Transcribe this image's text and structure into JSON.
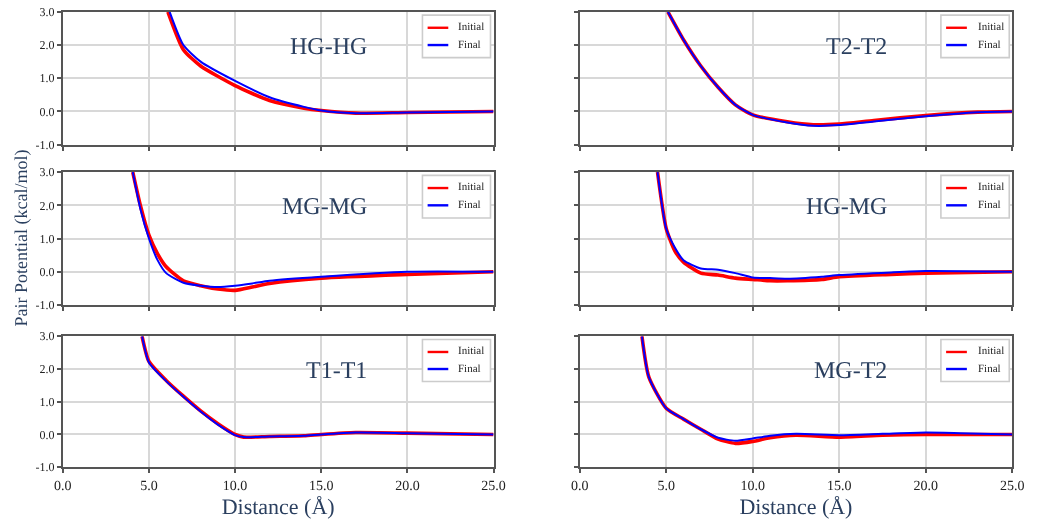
{
  "chart_data": [
    {
      "type": "line",
      "title": "HG-HG",
      "xlim": [
        0,
        25
      ],
      "ylim": [
        -1,
        3
      ],
      "xticks": [
        {
          "value": 0,
          "label": null
        },
        {
          "value": 5,
          "label": null
        },
        {
          "value": 10,
          "label": null
        },
        {
          "value": 15,
          "label": null
        },
        {
          "value": 20,
          "label": null
        },
        {
          "value": 25,
          "label": null
        }
      ],
      "yticks": [
        {
          "value": -1,
          "label": "-1.0"
        },
        {
          "value": 0,
          "label": "0.0"
        },
        {
          "value": 1,
          "label": "1.0"
        },
        {
          "value": 2,
          "label": "2.0"
        },
        {
          "value": 3,
          "label": "3.0"
        }
      ],
      "tick_labels": "y",
      "grid": true,
      "legend": "top right",
      "series": [
        {
          "name": "Initial",
          "color": "#ff0000",
          "x": [
            6.1,
            7,
            8,
            10,
            12,
            14,
            15,
            17,
            20,
            25
          ],
          "values": [
            3.0,
            1.86,
            1.37,
            0.78,
            0.33,
            0.1,
            0.03,
            -0.05,
            -0.03,
            0.0
          ]
        },
        {
          "name": "Final",
          "color": "#0000ff",
          "x": [
            6.2,
            7,
            8,
            10,
            12,
            14,
            15,
            17,
            20,
            25
          ],
          "values": [
            3.0,
            2.0,
            1.5,
            0.92,
            0.43,
            0.14,
            0.03,
            -0.05,
            -0.03,
            0.0
          ]
        }
      ]
    },
    {
      "type": "line",
      "title": "T2-T2",
      "xlim": [
        0,
        25
      ],
      "ylim": [
        -1,
        3
      ],
      "xticks": [
        {
          "value": 0,
          "label": null
        },
        {
          "value": 5,
          "label": null
        },
        {
          "value": 10,
          "label": null
        },
        {
          "value": 15,
          "label": null
        },
        {
          "value": 20,
          "label": null
        },
        {
          "value": 25,
          "label": null
        }
      ],
      "yticks": [
        {
          "value": -1,
          "label": null
        },
        {
          "value": 0,
          "label": null
        },
        {
          "value": 1,
          "label": null
        },
        {
          "value": 2,
          "label": null
        },
        {
          "value": 3,
          "label": null
        }
      ],
      "tick_labels": false,
      "grid": true,
      "legend": "top right",
      "series": [
        {
          "name": "Initial",
          "color": "#ff0000",
          "x": [
            5.1,
            6,
            7,
            8,
            9,
            10,
            12,
            13.5,
            15,
            17,
            20,
            23,
            25
          ],
          "values": [
            3.0,
            2.16,
            1.37,
            0.73,
            0.2,
            -0.1,
            -0.31,
            -0.4,
            -0.38,
            -0.27,
            -0.12,
            -0.02,
            0.0
          ]
        },
        {
          "name": "Final",
          "color": "#0000ff",
          "x": [
            5.1,
            6,
            7,
            8,
            9,
            10,
            12,
            13.5,
            15,
            17,
            20,
            23,
            25
          ],
          "values": [
            3.0,
            2.16,
            1.37,
            0.73,
            0.2,
            -0.1,
            -0.33,
            -0.43,
            -0.41,
            -0.3,
            -0.14,
            -0.02,
            0.0
          ]
        }
      ]
    },
    {
      "type": "line",
      "title": "MG-MG",
      "ylabel": "Pair Potential (kcal/mol)",
      "xlim": [
        0,
        25
      ],
      "ylim": [
        -1,
        3
      ],
      "xticks": [
        {
          "value": 0,
          "label": null
        },
        {
          "value": 5,
          "label": null
        },
        {
          "value": 10,
          "label": null
        },
        {
          "value": 15,
          "label": null
        },
        {
          "value": 20,
          "label": null
        },
        {
          "value": 25,
          "label": null
        }
      ],
      "yticks": [
        {
          "value": -1,
          "label": "-1.0"
        },
        {
          "value": 0,
          "label": "0.0"
        },
        {
          "value": 1,
          "label": "1.0"
        },
        {
          "value": 2,
          "label": "2.0"
        },
        {
          "value": 3,
          "label": "3.0"
        }
      ],
      "tick_labels": "y",
      "grid": true,
      "legend": "top right",
      "series": [
        {
          "name": "Initial",
          "color": "#ff0000",
          "x": [
            4.06,
            4.5,
            5,
            5.5,
            6,
            7,
            8,
            9,
            10,
            11,
            12,
            15,
            20,
            25
          ],
          "values": [
            3.0,
            2.0,
            1.1,
            0.54,
            0.15,
            -0.27,
            -0.42,
            -0.52,
            -0.56,
            -0.46,
            -0.35,
            -0.19,
            -0.08,
            0.0
          ]
        },
        {
          "name": "Final",
          "color": "#0000ff",
          "x": [
            4.06,
            4.5,
            5,
            5.5,
            6,
            7,
            8,
            9,
            10,
            11,
            12,
            15,
            20,
            25
          ],
          "values": [
            3.0,
            1.9,
            1.0,
            0.35,
            -0.04,
            -0.33,
            -0.42,
            -0.46,
            -0.42,
            -0.35,
            -0.27,
            -0.15,
            0.0,
            0.0
          ]
        }
      ]
    },
    {
      "type": "line",
      "title": "HG-MG",
      "xlim": [
        0,
        25
      ],
      "ylim": [
        -1,
        3
      ],
      "xticks": [
        {
          "value": 0,
          "label": null
        },
        {
          "value": 5,
          "label": null
        },
        {
          "value": 10,
          "label": null
        },
        {
          "value": 15,
          "label": null
        },
        {
          "value": 20,
          "label": null
        },
        {
          "value": 25,
          "label": null
        }
      ],
      "yticks": [
        {
          "value": -1,
          "label": null
        },
        {
          "value": 0,
          "label": null
        },
        {
          "value": 1,
          "label": null
        },
        {
          "value": 2,
          "label": null
        },
        {
          "value": 3,
          "label": null
        }
      ],
      "tick_labels": false,
      "grid": true,
      "legend": "top right",
      "series": [
        {
          "name": "Initial",
          "color": "#ff0000",
          "x": [
            4.5,
            5,
            5.5,
            6,
            7,
            8,
            9,
            10,
            11,
            12,
            14,
            15,
            18,
            20,
            25
          ],
          "values": [
            3.0,
            1.3,
            0.63,
            0.29,
            -0.04,
            -0.1,
            -0.19,
            -0.23,
            -0.27,
            -0.27,
            -0.23,
            -0.15,
            -0.08,
            -0.04,
            0.0
          ]
        },
        {
          "name": "Final",
          "color": "#0000ff",
          "x": [
            4.5,
            5,
            5.5,
            6,
            7,
            8,
            9,
            10,
            11,
            12,
            14,
            15,
            18,
            20,
            25
          ],
          "values": [
            3.0,
            1.3,
            0.73,
            0.35,
            0.1,
            0.06,
            -0.04,
            -0.17,
            -0.19,
            -0.21,
            -0.15,
            -0.1,
            -0.02,
            0.02,
            0.0
          ]
        }
      ]
    },
    {
      "type": "line",
      "title": "T1-T1",
      "xlabel": "Distance (Å)",
      "xlim": [
        0,
        25
      ],
      "ylim": [
        -1,
        3
      ],
      "xticks": [
        {
          "value": 0,
          "label": "0.0"
        },
        {
          "value": 5,
          "label": "5.0"
        },
        {
          "value": 10,
          "label": "10.0"
        },
        {
          "value": 15,
          "label": "15.0"
        },
        {
          "value": 20,
          "label": "20.0"
        },
        {
          "value": 25,
          "label": "25.0"
        }
      ],
      "yticks": [
        {
          "value": -1,
          "label": "-1.0"
        },
        {
          "value": 0,
          "label": "0.0"
        },
        {
          "value": 1,
          "label": "1.0"
        },
        {
          "value": 2,
          "label": "2.0"
        },
        {
          "value": 3,
          "label": "3.0"
        }
      ],
      "grid": true,
      "legend": "top right",
      "series": [
        {
          "name": "Initial",
          "color": "#ff0000",
          "x": [
            4.6,
            5,
            6,
            7,
            8,
            9,
            10,
            10.5,
            12,
            14,
            15,
            17,
            20,
            25
          ],
          "values": [
            3.0,
            2.23,
            1.65,
            1.17,
            0.72,
            0.33,
            0.0,
            -0.08,
            -0.06,
            -0.04,
            0.0,
            0.06,
            0.04,
            0.0
          ]
        },
        {
          "name": "Final",
          "color": "#0000ff",
          "x": [
            4.6,
            5,
            6,
            7,
            8,
            9,
            10,
            10.5,
            12,
            14,
            15,
            17,
            20,
            25
          ],
          "values": [
            3.0,
            2.2,
            1.63,
            1.15,
            0.7,
            0.3,
            -0.02,
            -0.08,
            -0.06,
            -0.04,
            0.0,
            0.06,
            0.04,
            0.0
          ]
        }
      ]
    },
    {
      "type": "line",
      "title": "MG-T2",
      "xlabel": "Distance (Å)",
      "xlim": [
        0,
        25
      ],
      "ylim": [
        -1,
        3
      ],
      "xticks": [
        {
          "value": 0,
          "label": "0.0"
        },
        {
          "value": 5,
          "label": "5.0"
        },
        {
          "value": 10,
          "label": "10.0"
        },
        {
          "value": 15,
          "label": "15.0"
        },
        {
          "value": 20,
          "label": "20.0"
        },
        {
          "value": 25,
          "label": "25.0"
        }
      ],
      "yticks": [
        {
          "value": -1,
          "label": null
        },
        {
          "value": 0,
          "label": null
        },
        {
          "value": 1,
          "label": null
        },
        {
          "value": 2,
          "label": null
        },
        {
          "value": 3,
          "label": null
        }
      ],
      "tick_labels": "x",
      "grid": true,
      "legend": "top right",
      "series": [
        {
          "name": "Initial",
          "color": "#ff0000",
          "x": [
            3.6,
            4,
            5,
            6,
            7,
            8,
            9,
            10,
            11,
            12.5,
            15,
            17.5,
            20,
            22,
            25
          ],
          "values": [
            3.0,
            1.75,
            0.8,
            0.47,
            0.16,
            -0.14,
            -0.27,
            -0.21,
            -0.1,
            -0.02,
            -0.08,
            -0.02,
            0.0,
            0.0,
            0.0
          ]
        },
        {
          "name": "Final",
          "color": "#0000ff",
          "x": [
            3.6,
            4,
            5,
            6,
            7,
            8,
            9,
            10,
            11,
            12.5,
            15,
            17.5,
            20,
            22,
            25
          ],
          "values": [
            3.0,
            1.75,
            0.8,
            0.47,
            0.16,
            -0.1,
            -0.19,
            -0.12,
            -0.04,
            0.02,
            -0.02,
            0.02,
            0.06,
            0.04,
            0.0
          ]
        }
      ]
    }
  ]
}
